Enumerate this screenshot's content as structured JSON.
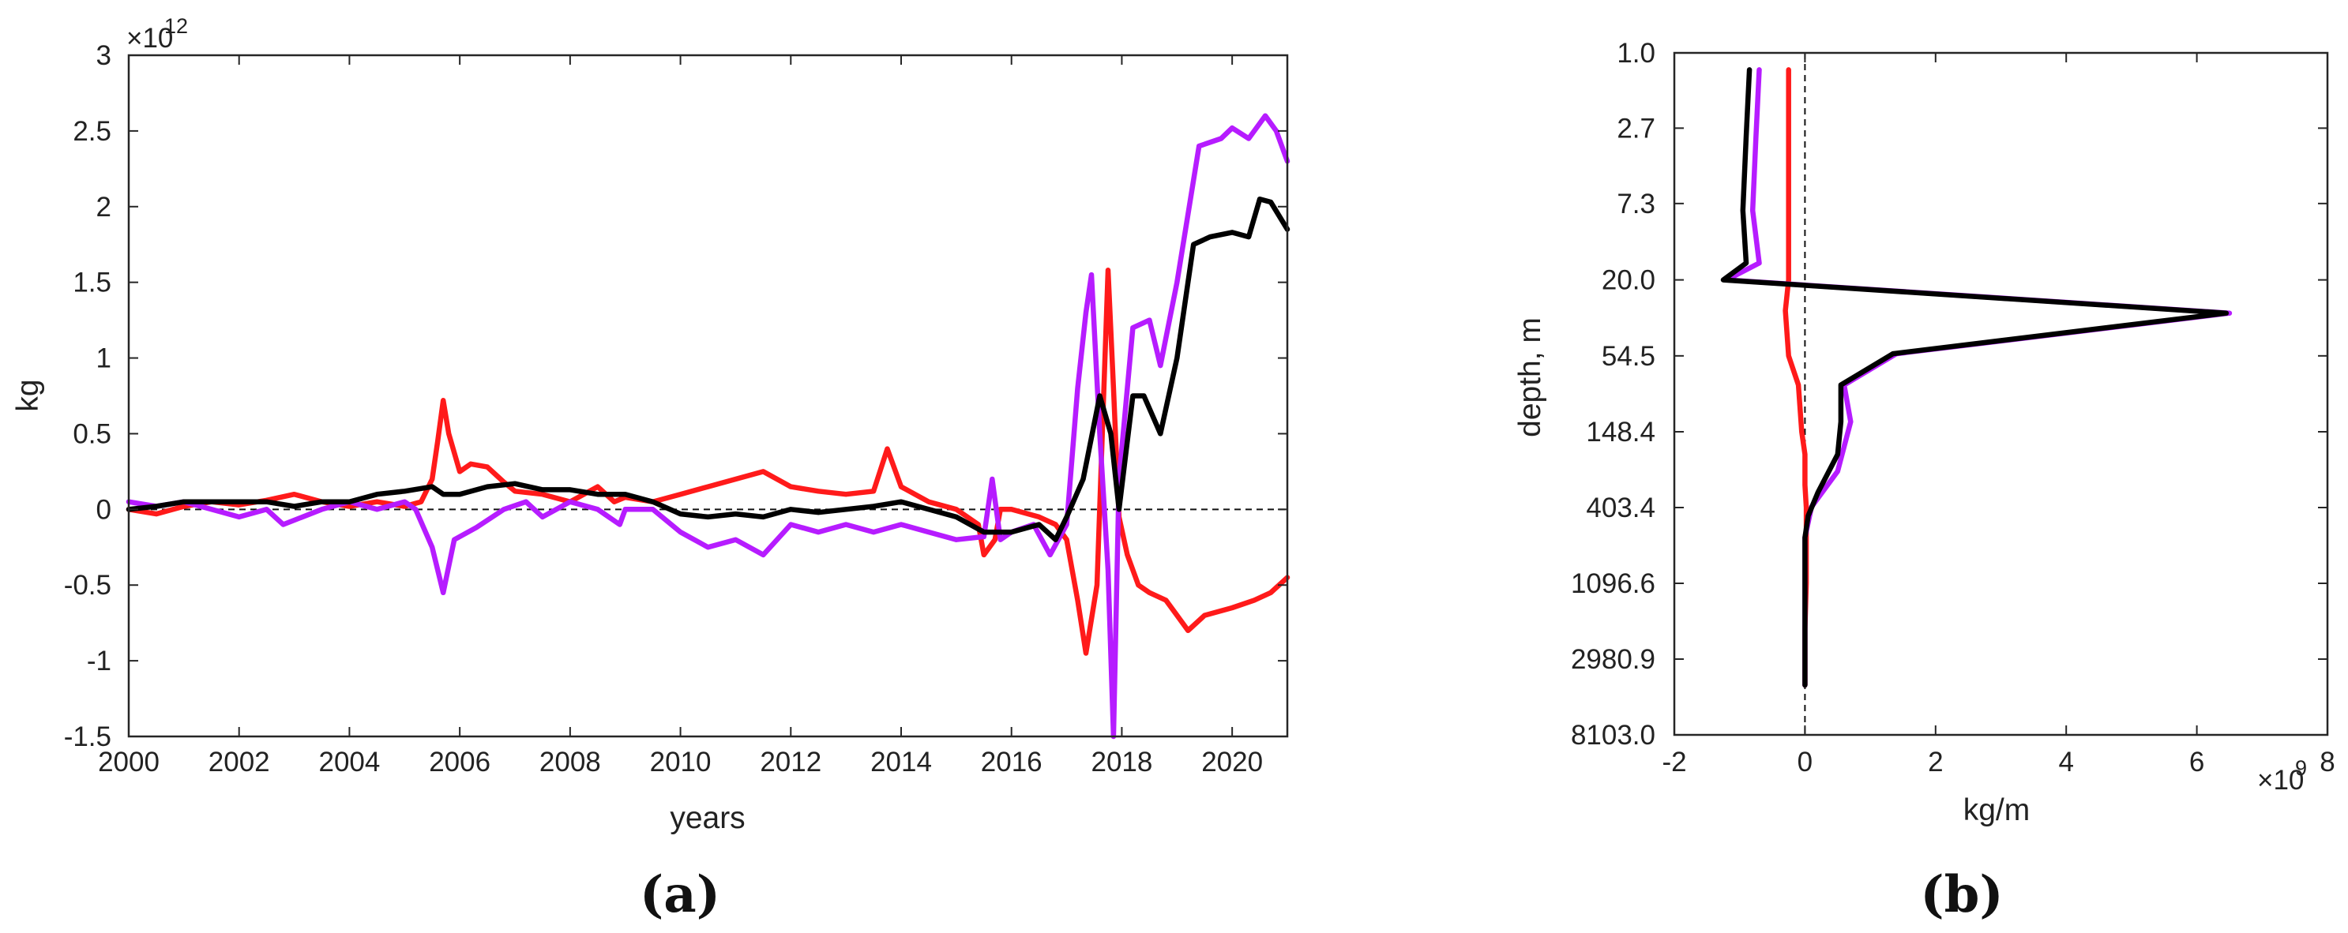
{
  "chart_data": [
    {
      "panel_label": "(a)",
      "type": "line",
      "xlabel": "years",
      "ylabel": "kg",
      "multiplier_base": "×10",
      "multiplier_exp": "12",
      "xlim": [
        2000,
        2021
      ],
      "ylim": [
        -1.5,
        3
      ],
      "x_ticks": [
        2000,
        2002,
        2004,
        2006,
        2008,
        2010,
        2012,
        2014,
        2016,
        2018,
        2020
      ],
      "x_tick_labels": [
        "2000",
        "2002",
        "2004",
        "2006",
        "2008",
        "2010",
        "2012",
        "2014",
        "2016",
        "2018",
        "2020"
      ],
      "y_ticks": [
        -1.5,
        -1,
        -0.5,
        0,
        0.5,
        1,
        1.5,
        2,
        2.5,
        3
      ],
      "y_tick_labels": [
        "-1.5",
        "-1",
        "-0.5",
        "0",
        "0.5",
        "1",
        "1.5",
        "2",
        "2.5",
        "3"
      ],
      "reference_line": {
        "axis": "y",
        "value": 0,
        "style": "dashed"
      },
      "series": [
        {
          "name": "red",
          "color": "#ff1a1a",
          "points": [
            [
              2000,
              0
            ],
            [
              2000.5,
              -0.03
            ],
            [
              2001,
              0.02
            ],
            [
              2001.5,
              0.05
            ],
            [
              2002,
              0.03
            ],
            [
              2002.5,
              0.06
            ],
            [
              2003,
              0.1
            ],
            [
              2003.5,
              0.05
            ],
            [
              2004,
              0.02
            ],
            [
              2004.5,
              0.05
            ],
            [
              2005,
              0.02
            ],
            [
              2005.3,
              0.05
            ],
            [
              2005.5,
              0.2
            ],
            [
              2005.6,
              0.45
            ],
            [
              2005.7,
              0.72
            ],
            [
              2005.8,
              0.5
            ],
            [
              2006,
              0.25
            ],
            [
              2006.2,
              0.3
            ],
            [
              2006.5,
              0.28
            ],
            [
              2006.8,
              0.18
            ],
            [
              2007,
              0.12
            ],
            [
              2007.5,
              0.1
            ],
            [
              2008,
              0.05
            ],
            [
              2008.5,
              0.15
            ],
            [
              2008.8,
              0.05
            ],
            [
              2009,
              0.08
            ],
            [
              2009.5,
              0.05
            ],
            [
              2010,
              0.1
            ],
            [
              2010.5,
              0.15
            ],
            [
              2011,
              0.2
            ],
            [
              2011.5,
              0.25
            ],
            [
              2012,
              0.15
            ],
            [
              2012.5,
              0.12
            ],
            [
              2013,
              0.1
            ],
            [
              2013.5,
              0.12
            ],
            [
              2013.75,
              0.4
            ],
            [
              2014,
              0.15
            ],
            [
              2014.5,
              0.05
            ],
            [
              2015,
              0
            ],
            [
              2015.4,
              -0.1
            ],
            [
              2015.5,
              -0.3
            ],
            [
              2015.7,
              -0.2
            ],
            [
              2015.8,
              0
            ],
            [
              2016,
              0
            ],
            [
              2016.5,
              -0.05
            ],
            [
              2016.8,
              -0.1
            ],
            [
              2017,
              -0.2
            ],
            [
              2017.2,
              -0.6
            ],
            [
              2017.35,
              -0.95
            ],
            [
              2017.55,
              -0.5
            ],
            [
              2017.75,
              1.58
            ],
            [
              2017.85,
              0.8
            ],
            [
              2017.95,
              -0.05
            ],
            [
              2018.1,
              -0.3
            ],
            [
              2018.3,
              -0.5
            ],
            [
              2018.5,
              -0.55
            ],
            [
              2018.8,
              -0.6
            ],
            [
              2019,
              -0.7
            ],
            [
              2019.2,
              -0.8
            ],
            [
              2019.5,
              -0.7
            ],
            [
              2020,
              -0.65
            ],
            [
              2020.4,
              -0.6
            ],
            [
              2020.7,
              -0.55
            ],
            [
              2021,
              -0.45
            ]
          ]
        },
        {
          "name": "purple",
          "color": "#b61cff",
          "points": [
            [
              2000,
              0.05
            ],
            [
              2000.5,
              0.02
            ],
            [
              2001,
              0.05
            ],
            [
              2001.5,
              0
            ],
            [
              2002,
              -0.05
            ],
            [
              2002.5,
              0
            ],
            [
              2002.8,
              -0.1
            ],
            [
              2003.5,
              0
            ],
            [
              2004,
              0.05
            ],
            [
              2004.5,
              0
            ],
            [
              2005,
              0.05
            ],
            [
              2005.2,
              0
            ],
            [
              2005.5,
              -0.25
            ],
            [
              2005.7,
              -0.55
            ],
            [
              2005.9,
              -0.2
            ],
            [
              2006.3,
              -0.12
            ],
            [
              2006.8,
              0
            ],
            [
              2007.2,
              0.05
            ],
            [
              2007.5,
              -0.05
            ],
            [
              2008,
              0.05
            ],
            [
              2008.5,
              0
            ],
            [
              2008.9,
              -0.1
            ],
            [
              2009,
              0
            ],
            [
              2009.5,
              0
            ],
            [
              2010,
              -0.15
            ],
            [
              2010.5,
              -0.25
            ],
            [
              2011,
              -0.2
            ],
            [
              2011.5,
              -0.3
            ],
            [
              2012,
              -0.1
            ],
            [
              2012.5,
              -0.15
            ],
            [
              2013,
              -0.1
            ],
            [
              2013.5,
              -0.15
            ],
            [
              2014,
              -0.1
            ],
            [
              2014.5,
              -0.15
            ],
            [
              2015,
              -0.2
            ],
            [
              2015.5,
              -0.18
            ],
            [
              2015.65,
              0.2
            ],
            [
              2015.8,
              -0.2
            ],
            [
              2016,
              -0.15
            ],
            [
              2016.4,
              -0.1
            ],
            [
              2016.7,
              -0.3
            ],
            [
              2017,
              -0.1
            ],
            [
              2017.2,
              0.8
            ],
            [
              2017.35,
              1.3
            ],
            [
              2017.45,
              1.55
            ],
            [
              2017.6,
              0.5
            ],
            [
              2017.75,
              -0.4
            ],
            [
              2017.85,
              -1.5
            ],
            [
              2017.95,
              0.2
            ],
            [
              2018.2,
              1.2
            ],
            [
              2018.5,
              1.25
            ],
            [
              2018.7,
              0.95
            ],
            [
              2019,
              1.5
            ],
            [
              2019.4,
              2.4
            ],
            [
              2019.8,
              2.45
            ],
            [
              2020,
              2.52
            ],
            [
              2020.3,
              2.45
            ],
            [
              2020.6,
              2.6
            ],
            [
              2020.8,
              2.5
            ],
            [
              2021,
              2.3
            ]
          ]
        },
        {
          "name": "black",
          "color": "#000000",
          "points": [
            [
              2000,
              0
            ],
            [
              2000.5,
              0.02
            ],
            [
              2001,
              0.05
            ],
            [
              2001.5,
              0.05
            ],
            [
              2002,
              0.05
            ],
            [
              2002.5,
              0.05
            ],
            [
              2003,
              0.02
            ],
            [
              2003.5,
              0.05
            ],
            [
              2004,
              0.05
            ],
            [
              2004.5,
              0.1
            ],
            [
              2005,
              0.12
            ],
            [
              2005.5,
              0.15
            ],
            [
              2005.7,
              0.1
            ],
            [
              2006,
              0.1
            ],
            [
              2006.5,
              0.15
            ],
            [
              2007,
              0.17
            ],
            [
              2007.5,
              0.13
            ],
            [
              2008,
              0.13
            ],
            [
              2008.5,
              0.1
            ],
            [
              2009,
              0.1
            ],
            [
              2009.5,
              0.05
            ],
            [
              2010,
              -0.03
            ],
            [
              2010.5,
              -0.05
            ],
            [
              2011,
              -0.03
            ],
            [
              2011.5,
              -0.05
            ],
            [
              2012,
              0
            ],
            [
              2012.5,
              -0.02
            ],
            [
              2013,
              0
            ],
            [
              2013.5,
              0.02
            ],
            [
              2014,
              0.05
            ],
            [
              2014.5,
              0
            ],
            [
              2015,
              -0.05
            ],
            [
              2015.5,
              -0.15
            ],
            [
              2016,
              -0.15
            ],
            [
              2016.5,
              -0.1
            ],
            [
              2016.8,
              -0.2
            ],
            [
              2017,
              -0.05
            ],
            [
              2017.3,
              0.2
            ],
            [
              2017.6,
              0.75
            ],
            [
              2017.8,
              0.5
            ],
            [
              2017.95,
              0
            ],
            [
              2018.2,
              0.75
            ],
            [
              2018.4,
              0.75
            ],
            [
              2018.7,
              0.5
            ],
            [
              2019,
              1
            ],
            [
              2019.3,
              1.75
            ],
            [
              2019.6,
              1.8
            ],
            [
              2020,
              1.83
            ],
            [
              2020.3,
              1.8
            ],
            [
              2020.5,
              2.05
            ],
            [
              2020.7,
              2.03
            ],
            [
              2021,
              1.85
            ]
          ]
        }
      ]
    },
    {
      "panel_label": "(b)",
      "type": "line",
      "xlabel": "kg/m",
      "ylabel": "depth, m",
      "multiplier_base": "×10",
      "multiplier_exp": "9",
      "y_scale": "log",
      "y_direction": "reversed",
      "xlim": [
        -2,
        8
      ],
      "ylim": [
        1.0,
        8103.0
      ],
      "x_ticks": [
        -2,
        0,
        2,
        4,
        6,
        8
      ],
      "x_tick_labels": [
        "-2",
        "0",
        "2",
        "4",
        "6",
        "8"
      ],
      "y_ticks": [
        1.0,
        2.7,
        7.3,
        20.0,
        54.5,
        148.4,
        403.4,
        1096.6,
        2980.9,
        8103.0
      ],
      "y_tick_labels": [
        "1.0",
        "2.7",
        "7.3",
        "20.0",
        "54.5",
        "148.4",
        "403.4",
        "1096.6",
        "2980.9",
        "8103.0"
      ],
      "reference_line": {
        "axis": "x",
        "value": 0,
        "style": "dashed"
      },
      "series": [
        {
          "name": "red",
          "color": "#ff1a1a",
          "points": [
            [
              -0.25,
              1.25
            ],
            [
              -0.25,
              3
            ],
            [
              -0.25,
              8
            ],
            [
              -0.25,
              20
            ],
            [
              -0.3,
              30
            ],
            [
              -0.25,
              54.5
            ],
            [
              -0.1,
              80
            ],
            [
              -0.05,
              148.4
            ],
            [
              0,
              200
            ],
            [
              0,
              300
            ],
            [
              0.02,
              403.4
            ],
            [
              0.02,
              700
            ],
            [
              0.02,
              1096.6
            ],
            [
              0,
              2000
            ],
            [
              0,
              3000
            ],
            [
              0,
              4200
            ]
          ]
        },
        {
          "name": "purple",
          "color": "#b61cff",
          "points": [
            [
              -0.7,
              1.25
            ],
            [
              -0.75,
              3
            ],
            [
              -0.8,
              8
            ],
            [
              -0.7,
              16
            ],
            [
              -1.2,
              20
            ],
            [
              6.5,
              31
            ],
            [
              1.4,
              53
            ],
            [
              0.6,
              80
            ],
            [
              0.7,
              130
            ],
            [
              0.5,
              250
            ],
            [
              0.1,
              400
            ],
            [
              0,
              600
            ],
            [
              0,
              1096.6
            ],
            [
              0,
              2000
            ],
            [
              0,
              4200
            ]
          ]
        },
        {
          "name": "black",
          "color": "#000000",
          "points": [
            [
              -0.85,
              1.25
            ],
            [
              -0.9,
              3
            ],
            [
              -0.95,
              8
            ],
            [
              -0.9,
              16
            ],
            [
              -1.25,
              20
            ],
            [
              6.45,
              31
            ],
            [
              1.35,
              53
            ],
            [
              0.55,
              80
            ],
            [
              0.55,
              130
            ],
            [
              0.5,
              200
            ],
            [
              0.2,
              330
            ],
            [
              0.05,
              450
            ],
            [
              0,
              600
            ],
            [
              0,
              1096.6
            ],
            [
              0,
              2000
            ],
            [
              0,
              4200
            ]
          ]
        }
      ]
    }
  ]
}
